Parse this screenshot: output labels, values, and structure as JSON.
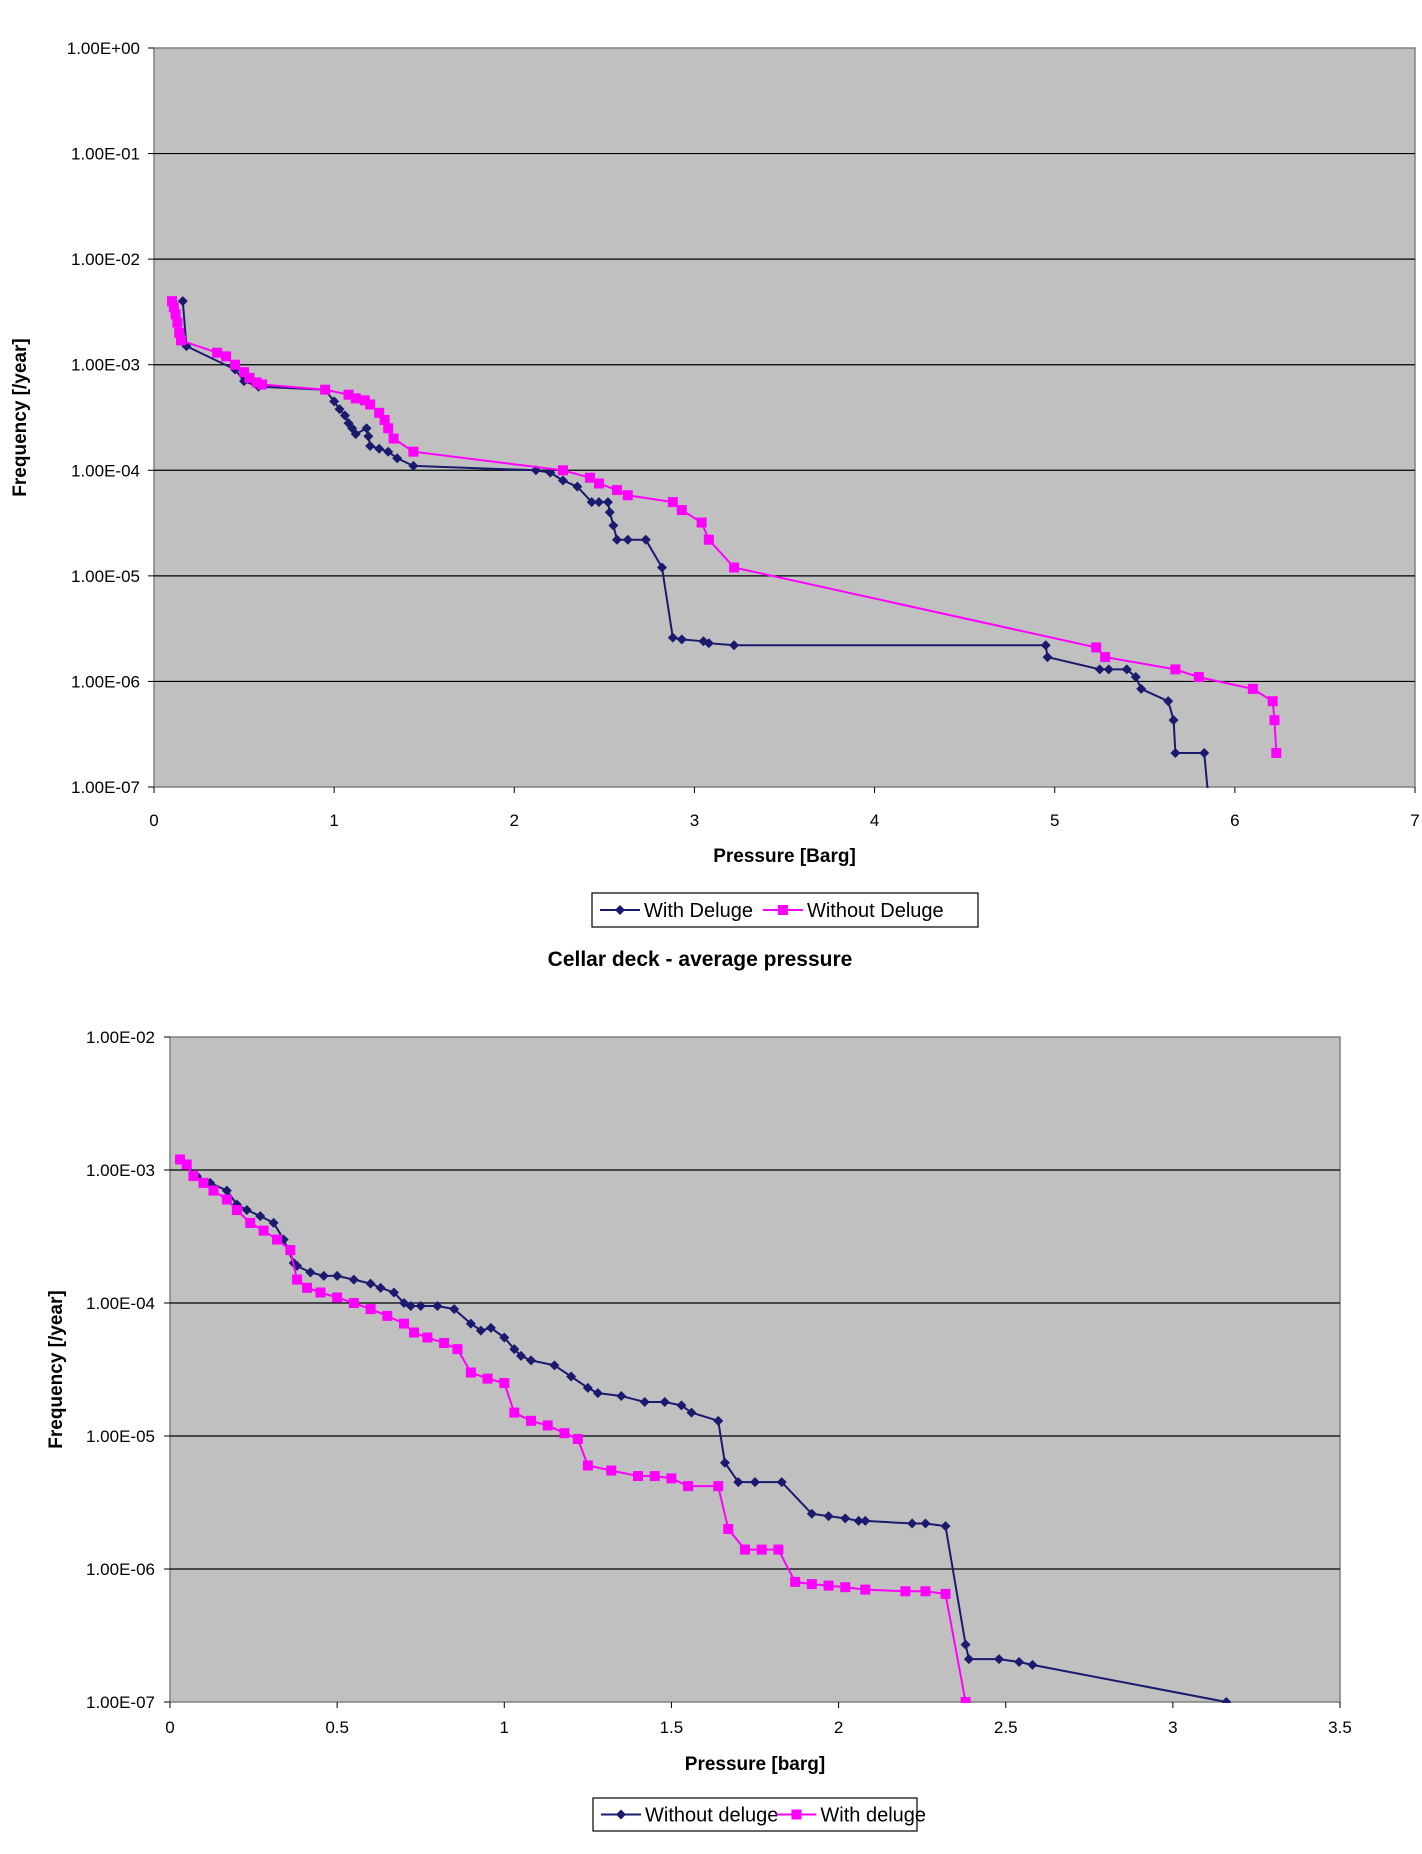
{
  "chart_data": [
    {
      "type": "line",
      "title": "",
      "xlabel": "Pressure [Barg]",
      "ylabel": "Frequency [/year]",
      "xlim": [
        0,
        7
      ],
      "ylim": [
        1e-07,
        1
      ],
      "yscale": "log",
      "grid": true,
      "legend_position": "bottom",
      "x_ticks": [
        "0",
        "1",
        "2",
        "3",
        "4",
        "5",
        "6",
        "7"
      ],
      "y_ticks": [
        "1.00E-07",
        "1.00E-06",
        "1.00E-05",
        "1.00E-04",
        "1.00E-03",
        "1.00E-02",
        "1.00E-01",
        "1.00E+00"
      ],
      "series": [
        {
          "name": "With Deluge",
          "color": "#1a1a6e",
          "marker": "diamond",
          "x": [
            0.16,
            0.18,
            0.45,
            0.5,
            0.58,
            0.95,
            1.0,
            1.03,
            1.06,
            1.08,
            1.1,
            1.12,
            1.18,
            1.19,
            1.2,
            1.25,
            1.3,
            1.35,
            1.44,
            2.12,
            2.2,
            2.27,
            2.35,
            2.43,
            2.47,
            2.52,
            2.53,
            2.55,
            2.57,
            2.63,
            2.73,
            2.82,
            2.88,
            2.93,
            3.05,
            3.08,
            3.22,
            4.95,
            4.96,
            5.25,
            5.3,
            5.4,
            5.45,
            5.48,
            5.63,
            5.66,
            5.67,
            5.83,
            5.85
          ],
          "y": [
            0.004,
            0.0015,
            0.0009,
            0.0007,
            0.00062,
            0.00058,
            0.00045,
            0.00038,
            0.00033,
            0.00028,
            0.00025,
            0.00022,
            0.00025,
            0.00021,
            0.00017,
            0.00016,
            0.00015,
            0.00013,
            0.00011,
            0.0001,
            9.5e-05,
            8e-05,
            7e-05,
            5e-05,
            5e-05,
            5e-05,
            4e-05,
            3e-05,
            2.2e-05,
            2.2e-05,
            2.2e-05,
            1.2e-05,
            2.6e-06,
            2.5e-06,
            2.4e-06,
            2.3e-06,
            2.2e-06,
            2.2e-06,
            1.7e-06,
            1.3e-06,
            1.3e-06,
            1.3e-06,
            1.1e-06,
            8.5e-07,
            6.5e-07,
            4.3e-07,
            2.1e-07,
            2.1e-07,
            9e-08
          ]
        },
        {
          "name": "Without Deluge",
          "color": "#ff00ff",
          "marker": "square",
          "x": [
            0.1,
            0.11,
            0.12,
            0.13,
            0.14,
            0.15,
            0.35,
            0.4,
            0.45,
            0.5,
            0.53,
            0.57,
            0.6,
            0.95,
            1.08,
            1.12,
            1.17,
            1.2,
            1.25,
            1.28,
            1.3,
            1.33,
            1.44,
            2.27,
            2.42,
            2.47,
            2.57,
            2.63,
            2.88,
            2.93,
            3.04,
            3.08,
            3.22,
            5.23,
            5.28,
            5.67,
            5.8,
            6.1,
            6.21,
            6.22,
            6.23
          ],
          "y": [
            0.004,
            0.0035,
            0.003,
            0.0025,
            0.002,
            0.0017,
            0.0013,
            0.0012,
            0.001,
            0.00085,
            0.00075,
            0.00068,
            0.00065,
            0.00058,
            0.00052,
            0.00048,
            0.00046,
            0.00042,
            0.00035,
            0.0003,
            0.00025,
            0.0002,
            0.00015,
            0.0001,
            8.5e-05,
            7.5e-05,
            6.5e-05,
            5.8e-05,
            5e-05,
            4.2e-05,
            3.2e-05,
            2.2e-05,
            1.2e-05,
            2.1e-06,
            1.7e-06,
            1.3e-06,
            1.1e-06,
            8.5e-07,
            6.5e-07,
            4.3e-07,
            2.1e-07
          ]
        }
      ]
    },
    {
      "type": "line",
      "title": "Cellar deck - average pressure",
      "xlabel": "Pressure [barg]",
      "ylabel": "Frequency [/year]",
      "xlim": [
        0,
        3.5
      ],
      "ylim": [
        1e-07,
        0.01
      ],
      "yscale": "log",
      "grid": true,
      "legend_position": "bottom",
      "x_ticks": [
        "0",
        "0.5",
        "1",
        "1.5",
        "2",
        "2.5",
        "3",
        "3.5"
      ],
      "y_ticks": [
        "1.00E-07",
        "1.00E-06",
        "1.00E-05",
        "1.00E-04",
        "1.00E-03",
        "1.00E-02"
      ],
      "series": [
        {
          "name": "Without deluge",
          "color": "#1a1a6e",
          "marker": "diamond",
          "x": [
            0.03,
            0.05,
            0.08,
            0.12,
            0.17,
            0.2,
            0.23,
            0.27,
            0.31,
            0.34,
            0.37,
            0.38,
            0.42,
            0.46,
            0.5,
            0.55,
            0.6,
            0.63,
            0.67,
            0.7,
            0.72,
            0.75,
            0.8,
            0.85,
            0.9,
            0.93,
            0.96,
            1.0,
            1.03,
            1.05,
            1.08,
            1.15,
            1.2,
            1.25,
            1.28,
            1.35,
            1.42,
            1.48,
            1.53,
            1.56,
            1.64,
            1.66,
            1.7,
            1.75,
            1.83,
            1.92,
            1.97,
            2.02,
            2.06,
            2.08,
            2.22,
            2.26,
            2.32,
            2.38,
            2.39,
            2.48,
            2.54,
            2.58,
            3.16
          ],
          "y": [
            0.0012,
            0.0011,
            0.0009,
            0.0008,
            0.0007,
            0.00055,
            0.0005,
            0.00045,
            0.0004,
            0.0003,
            0.0002,
            0.00019,
            0.00017,
            0.00016,
            0.00016,
            0.00015,
            0.00014,
            0.00013,
            0.00012,
            0.0001,
            9.5e-05,
            9.5e-05,
            9.5e-05,
            9e-05,
            7e-05,
            6.2e-05,
            6.5e-05,
            5.5e-05,
            4.5e-05,
            4e-05,
            3.7e-05,
            3.4e-05,
            2.8e-05,
            2.3e-05,
            2.1e-05,
            2e-05,
            1.8e-05,
            1.8e-05,
            1.7e-05,
            1.5e-05,
            1.3e-05,
            6.3e-06,
            4.5e-06,
            4.5e-06,
            4.5e-06,
            2.6e-06,
            2.5e-06,
            2.4e-06,
            2.3e-06,
            2.3e-06,
            2.2e-06,
            2.2e-06,
            2.1e-06,
            2.7e-07,
            2.1e-07,
            2.1e-07,
            2e-07,
            1.9e-07,
            1e-07
          ]
        },
        {
          "name": "With deluge",
          "color": "#ff00ff",
          "marker": "square",
          "x": [
            0.03,
            0.05,
            0.07,
            0.1,
            0.13,
            0.17,
            0.2,
            0.24,
            0.28,
            0.32,
            0.36,
            0.38,
            0.41,
            0.45,
            0.5,
            0.55,
            0.6,
            0.65,
            0.7,
            0.73,
            0.77,
            0.82,
            0.86,
            0.9,
            0.95,
            1.0,
            1.03,
            1.08,
            1.13,
            1.18,
            1.22,
            1.25,
            1.32,
            1.4,
            1.45,
            1.5,
            1.55,
            1.64,
            1.67,
            1.72,
            1.77,
            1.82,
            1.87,
            1.92,
            1.97,
            2.02,
            2.08,
            2.2,
            2.26,
            2.32,
            2.38
          ],
          "y": [
            0.0012,
            0.0011,
            0.0009,
            0.0008,
            0.0007,
            0.0006,
            0.0005,
            0.0004,
            0.00035,
            0.0003,
            0.00025,
            0.00015,
            0.00013,
            0.00012,
            0.00011,
            0.0001,
            9e-05,
            8e-05,
            7e-05,
            6e-05,
            5.5e-05,
            5e-05,
            4.5e-05,
            3e-05,
            2.7e-05,
            2.5e-05,
            1.5e-05,
            1.3e-05,
            1.2e-05,
            1.05e-05,
            9.5e-06,
            6e-06,
            5.5e-06,
            5e-06,
            5e-06,
            4.8e-06,
            4.2e-06,
            4.2e-06,
            2e-06,
            1.4e-06,
            1.4e-06,
            1.4e-06,
            8e-07,
            7.7e-07,
            7.5e-07,
            7.3e-07,
            7e-07,
            6.8e-07,
            6.8e-07,
            6.5e-07,
            1e-07
          ]
        }
      ]
    }
  ]
}
